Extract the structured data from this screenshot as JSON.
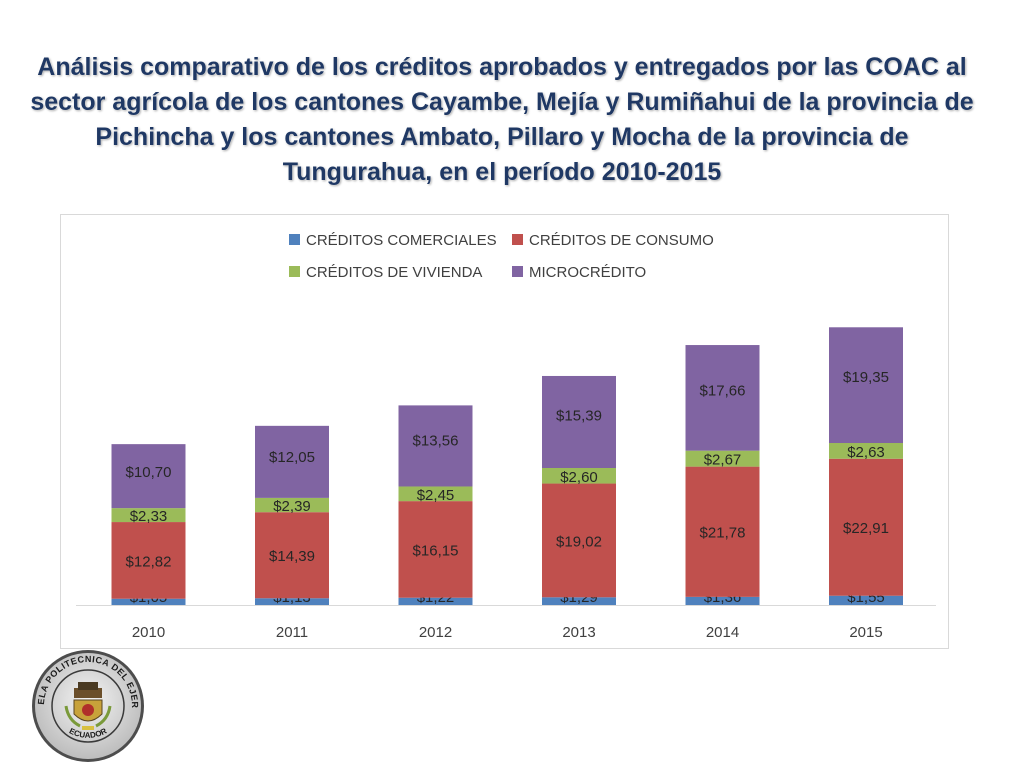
{
  "title": "Análisis comparativo de los créditos aprobados y entregados por las COAC al sector agrícola de los cantones Cayambe, Mejía y Rumiñahui de la provincia de Pichincha y los cantones Ambato, Pillaro y Mocha de la provincia de Tungurahua, en el período 2010-2015",
  "logo": {
    "ring_text_top": "ESCUELA POLITECNICA DEL EJERCITO",
    "ring_text_bottom": "ECUADOR"
  },
  "chart_data": {
    "type": "bar",
    "stacked": true,
    "categories": [
      "2010",
      "2011",
      "2012",
      "2013",
      "2014",
      "2015"
    ],
    "series": [
      {
        "name": "CRÉDITOS COMERCIALES",
        "color": "#4f81bd",
        "values": [
          1.05,
          1.13,
          1.22,
          1.29,
          1.36,
          1.55
        ],
        "labels": [
          "$1,05",
          "$1,13",
          "$1,22",
          "$1,29",
          "$1,36",
          "$1,55"
        ]
      },
      {
        "name": "CRÉDITOS DE CONSUMO",
        "color": "#c0504d",
        "values": [
          12.82,
          14.39,
          16.15,
          19.02,
          21.78,
          22.91
        ],
        "labels": [
          "$12,82",
          "$14,39",
          "$16,15",
          "$19,02",
          "$21,78",
          "$22,91"
        ]
      },
      {
        "name": "CRÉDITOS DE VIVIENDA",
        "color": "#9bbb59",
        "values": [
          2.33,
          2.39,
          2.45,
          2.6,
          2.67,
          2.63
        ],
        "labels": [
          "$2,33",
          "$2,39",
          "$2,45",
          "$2,60",
          "$2,67",
          "$2,63"
        ]
      },
      {
        "name": "MICROCRÉDITO",
        "color": "#8064a2",
        "values": [
          10.7,
          12.05,
          13.56,
          15.39,
          17.66,
          19.35
        ],
        "labels": [
          "$10,70",
          "$12,05",
          "$13,56",
          "$15,39",
          "$17,66",
          "$19,35"
        ]
      }
    ],
    "legend_position": "top",
    "y_axis_visible": false,
    "grid": false,
    "ylim": [
      0,
      48
    ]
  }
}
